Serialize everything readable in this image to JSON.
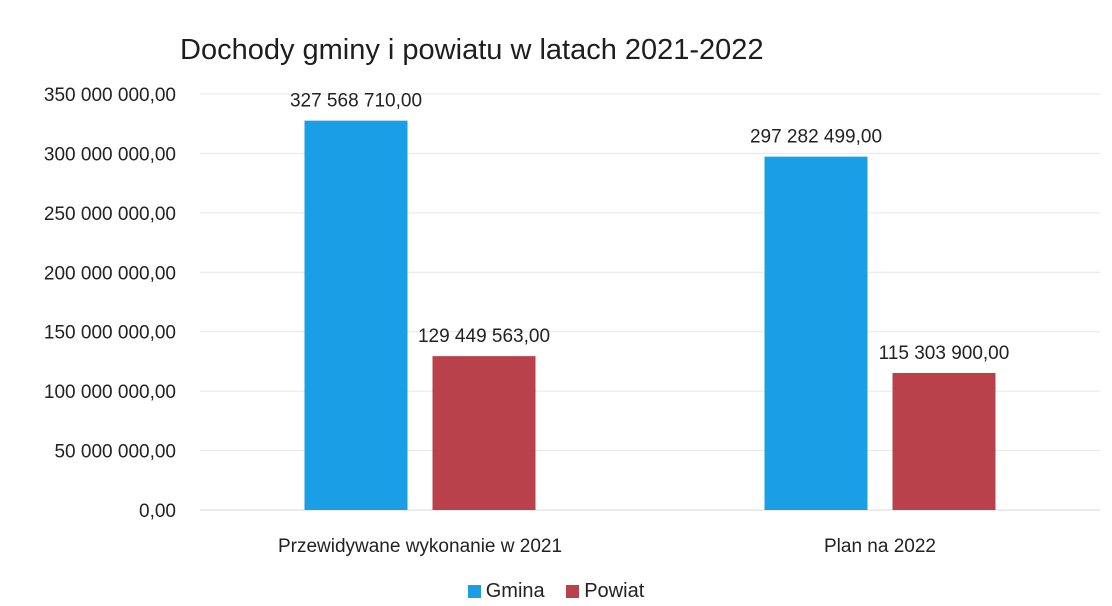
{
  "chart_data": {
    "type": "bar",
    "title": "Dochody gminy i powiatu w latach 2021-2022",
    "categories": [
      "Przewidywane wykonanie w 2021",
      "Plan na 2022"
    ],
    "series": [
      {
        "name": "Gmina",
        "color": "#1a9fe6",
        "values": [
          327568710,
          297282499
        ],
        "labels": [
          "327 568 710,00",
          "297 282 499,00"
        ]
      },
      {
        "name": "Powiat",
        "color": "#b8414b",
        "values": [
          129449563,
          115303900
        ],
        "labels": [
          "129 449 563,00",
          "115 303 900,00"
        ]
      }
    ],
    "ylim": [
      0,
      350000000
    ],
    "yticks": [
      0,
      50000000,
      100000000,
      150000000,
      200000000,
      250000000,
      300000000,
      350000000
    ],
    "ytick_labels": [
      "0,00",
      "50 000 000,00",
      "100 000 000,00",
      "150 000 000,00",
      "200 000 000,00",
      "250 000 000,00",
      "300 000 000,00",
      "350 000 000,00"
    ],
    "grid": true,
    "legend": "bottom"
  }
}
